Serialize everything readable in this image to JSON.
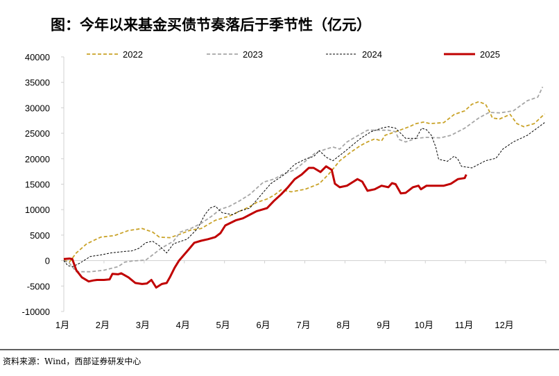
{
  "chart_data": {
    "type": "line",
    "title": "图：今年以来基金买债节奏落后于季节性（亿元）",
    "xlabel": "",
    "ylabel": "",
    "ylim": [
      -10000,
      40000
    ],
    "yticks": [
      "40000",
      "35000",
      "30000",
      "25000",
      "20000",
      "15000",
      "10000",
      "5000",
      "0",
      "-5000",
      "-10000"
    ],
    "ytick_values": [
      40000,
      35000,
      30000,
      25000,
      20000,
      15000,
      10000,
      5000,
      0,
      -5000,
      -10000
    ],
    "xlim": [
      1,
      13
    ],
    "xticks": [
      "1月",
      "2月",
      "3月",
      "4月",
      "5月",
      "6月",
      "7月",
      "8月",
      "9月",
      "10月",
      "11月",
      "12月"
    ],
    "xtick_values": [
      1,
      2,
      3,
      4,
      5,
      6,
      7,
      8,
      9,
      10,
      11,
      12
    ],
    "grid": false,
    "legend_position": "top",
    "series": [
      {
        "name": "2022",
        "color": "#C9A227",
        "style": "dashed",
        "points": [
          [
            1.0,
            100
          ],
          [
            1.14,
            -300
          ],
          [
            1.31,
            1500
          ],
          [
            1.57,
            3300
          ],
          [
            1.92,
            4600
          ],
          [
            2.26,
            4900
          ],
          [
            2.61,
            5900
          ],
          [
            2.95,
            6300
          ],
          [
            3.21,
            5600
          ],
          [
            3.38,
            4600
          ],
          [
            3.64,
            4500
          ],
          [
            3.9,
            5200
          ],
          [
            4.16,
            6000
          ],
          [
            4.42,
            6300
          ],
          [
            4.77,
            7900
          ],
          [
            5.11,
            8700
          ],
          [
            5.63,
            10600
          ],
          [
            5.8,
            11400
          ],
          [
            6.06,
            12100
          ],
          [
            6.23,
            12800
          ],
          [
            6.41,
            13900
          ],
          [
            6.66,
            13500
          ],
          [
            7.01,
            14000
          ],
          [
            7.36,
            15100
          ],
          [
            7.61,
            17100
          ],
          [
            7.87,
            19600
          ],
          [
            8.13,
            21200
          ],
          [
            8.39,
            22600
          ],
          [
            8.56,
            23300
          ],
          [
            8.74,
            23900
          ],
          [
            8.91,
            23500
          ],
          [
            9.0,
            24600
          ],
          [
            9.26,
            25300
          ],
          [
            9.6,
            26300
          ],
          [
            9.77,
            26900
          ],
          [
            9.95,
            27200
          ],
          [
            10.12,
            26900
          ],
          [
            10.46,
            27100
          ],
          [
            10.72,
            28700
          ],
          [
            10.98,
            29400
          ],
          [
            11.16,
            30700
          ],
          [
            11.33,
            31200
          ],
          [
            11.5,
            30700
          ],
          [
            11.59,
            29400
          ],
          [
            11.67,
            28000
          ],
          [
            11.85,
            27800
          ],
          [
            12.11,
            28700
          ],
          [
            12.28,
            26900
          ],
          [
            12.45,
            26300
          ],
          [
            12.71,
            26900
          ],
          [
            12.97,
            28800
          ]
        ]
      },
      {
        "name": "2023",
        "color": "#A6A6A6",
        "style": "dashed",
        "points": [
          [
            1.0,
            0
          ],
          [
            1.14,
            -500
          ],
          [
            1.31,
            -2200
          ],
          [
            1.66,
            -2200
          ],
          [
            2.0,
            -1900
          ],
          [
            2.35,
            -1200
          ],
          [
            2.52,
            -300
          ],
          [
            2.69,
            -100
          ],
          [
            3.04,
            100
          ],
          [
            3.21,
            1100
          ],
          [
            3.42,
            2400
          ],
          [
            3.73,
            3800
          ],
          [
            3.9,
            5600
          ],
          [
            4.16,
            6300
          ],
          [
            4.42,
            7300
          ],
          [
            4.68,
            8700
          ],
          [
            4.9,
            10100
          ],
          [
            5.11,
            10600
          ],
          [
            5.37,
            11700
          ],
          [
            5.63,
            13000
          ],
          [
            5.97,
            15400
          ],
          [
            6.23,
            16000
          ],
          [
            6.49,
            17100
          ],
          [
            6.75,
            17800
          ],
          [
            7.01,
            19500
          ],
          [
            7.27,
            21200
          ],
          [
            7.53,
            21900
          ],
          [
            7.7,
            22300
          ],
          [
            7.87,
            21900
          ],
          [
            8.05,
            23300
          ],
          [
            8.31,
            24500
          ],
          [
            8.56,
            25600
          ],
          [
            8.82,
            25600
          ],
          [
            9.08,
            25600
          ],
          [
            9.26,
            25300
          ],
          [
            9.34,
            23800
          ],
          [
            9.51,
            23300
          ],
          [
            9.77,
            24000
          ],
          [
            10.03,
            24200
          ],
          [
            10.38,
            24100
          ],
          [
            10.64,
            24600
          ],
          [
            10.98,
            26000
          ],
          [
            11.33,
            28000
          ],
          [
            11.59,
            29100
          ],
          [
            11.85,
            29000
          ],
          [
            12.19,
            29400
          ],
          [
            12.54,
            31400
          ],
          [
            12.8,
            32100
          ],
          [
            12.92,
            34100
          ]
        ]
      },
      {
        "name": "2024",
        "color": "#000000",
        "style": "dotted",
        "points": [
          [
            1.0,
            0
          ],
          [
            1.1,
            -1000
          ],
          [
            1.22,
            -1200
          ],
          [
            1.4,
            -500
          ],
          [
            1.66,
            800
          ],
          [
            1.92,
            1100
          ],
          [
            2.17,
            1500
          ],
          [
            2.52,
            1800
          ],
          [
            2.69,
            1900
          ],
          [
            2.87,
            2400
          ],
          [
            3.04,
            3500
          ],
          [
            3.21,
            3800
          ],
          [
            3.38,
            2900
          ],
          [
            3.47,
            2200
          ],
          [
            3.56,
            1500
          ],
          [
            3.73,
            3300
          ],
          [
            4.07,
            4200
          ],
          [
            4.33,
            6300
          ],
          [
            4.51,
            9000
          ],
          [
            4.64,
            10300
          ],
          [
            4.77,
            10700
          ],
          [
            4.94,
            9400
          ],
          [
            5.2,
            9000
          ],
          [
            5.37,
            9700
          ],
          [
            5.63,
            10300
          ],
          [
            5.89,
            12700
          ],
          [
            6.15,
            15100
          ],
          [
            6.49,
            16900
          ],
          [
            6.75,
            18900
          ],
          [
            7.01,
            19900
          ],
          [
            7.23,
            20500
          ],
          [
            7.36,
            21600
          ],
          [
            7.53,
            20300
          ],
          [
            7.7,
            19600
          ],
          [
            7.96,
            21200
          ],
          [
            8.13,
            22300
          ],
          [
            8.39,
            24000
          ],
          [
            8.65,
            25300
          ],
          [
            8.91,
            26000
          ],
          [
            9.08,
            26300
          ],
          [
            9.26,
            26000
          ],
          [
            9.51,
            24000
          ],
          [
            9.77,
            24000
          ],
          [
            9.91,
            26000
          ],
          [
            10.03,
            25700
          ],
          [
            10.15,
            24600
          ],
          [
            10.26,
            22300
          ],
          [
            10.33,
            19900
          ],
          [
            10.55,
            19500
          ],
          [
            10.72,
            20500
          ],
          [
            10.81,
            19900
          ],
          [
            10.9,
            18500
          ],
          [
            11.16,
            18200
          ],
          [
            11.5,
            19600
          ],
          [
            11.76,
            20100
          ],
          [
            11.93,
            21900
          ],
          [
            12.19,
            23300
          ],
          [
            12.54,
            24600
          ],
          [
            12.97,
            27100
          ]
        ]
      },
      {
        "name": "2025",
        "color": "#C00000",
        "style": "solid",
        "points": [
          [
            1.0,
            300
          ],
          [
            1.14,
            400
          ],
          [
            1.21,
            300
          ],
          [
            1.31,
            -1900
          ],
          [
            1.45,
            -3300
          ],
          [
            1.62,
            -4100
          ],
          [
            1.74,
            -3900
          ],
          [
            1.83,
            -3800
          ],
          [
            2.0,
            -3800
          ],
          [
            2.14,
            -3700
          ],
          [
            2.21,
            -2600
          ],
          [
            2.35,
            -2700
          ],
          [
            2.43,
            -2500
          ],
          [
            2.61,
            -3300
          ],
          [
            2.78,
            -4400
          ],
          [
            2.95,
            -4600
          ],
          [
            3.07,
            -4500
          ],
          [
            3.18,
            -3800
          ],
          [
            3.3,
            -5300
          ],
          [
            3.44,
            -4600
          ],
          [
            3.56,
            -4400
          ],
          [
            3.64,
            -3300
          ],
          [
            3.76,
            -1400
          ],
          [
            3.87,
            0
          ],
          [
            3.99,
            1100
          ],
          [
            4.11,
            2200
          ],
          [
            4.25,
            3500
          ],
          [
            4.42,
            3900
          ],
          [
            4.59,
            4200
          ],
          [
            4.77,
            4600
          ],
          [
            4.9,
            5400
          ],
          [
            5.02,
            6900
          ],
          [
            5.28,
            7900
          ],
          [
            5.46,
            8300
          ],
          [
            5.63,
            9000
          ],
          [
            5.8,
            9700
          ],
          [
            6.06,
            10300
          ],
          [
            6.23,
            11700
          ],
          [
            6.41,
            13000
          ],
          [
            6.58,
            14400
          ],
          [
            6.75,
            16000
          ],
          [
            6.92,
            16900
          ],
          [
            7.1,
            18200
          ],
          [
            7.22,
            18200
          ],
          [
            7.39,
            17400
          ],
          [
            7.53,
            18500
          ],
          [
            7.67,
            17800
          ],
          [
            7.75,
            15100
          ],
          [
            7.87,
            14400
          ],
          [
            8.05,
            14700
          ],
          [
            8.31,
            16000
          ],
          [
            8.43,
            15500
          ],
          [
            8.56,
            13700
          ],
          [
            8.74,
            14000
          ],
          [
            8.91,
            14700
          ],
          [
            9.08,
            14400
          ],
          [
            9.17,
            15200
          ],
          [
            9.26,
            15000
          ],
          [
            9.39,
            13200
          ],
          [
            9.51,
            13300
          ],
          [
            9.69,
            14400
          ],
          [
            9.83,
            14700
          ],
          [
            9.89,
            14000
          ],
          [
            10.03,
            14700
          ],
          [
            10.46,
            14700
          ],
          [
            10.64,
            15100
          ],
          [
            10.81,
            16000
          ],
          [
            10.98,
            16200
          ],
          [
            11.02,
            16900
          ]
        ]
      }
    ]
  },
  "footer": {
    "source": "资料来源：Wind，西部证券研发中心"
  }
}
